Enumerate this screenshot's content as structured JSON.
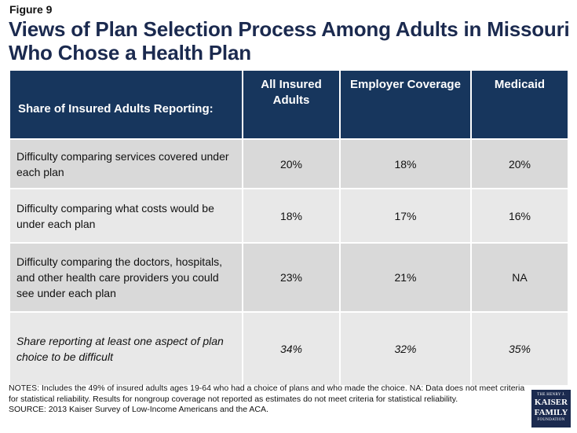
{
  "figure_label": "Figure 9",
  "chart_data": {
    "type": "table",
    "title": "Views of Plan Selection Process Among Adults in Missouri Who Chose a Health Plan",
    "row_header": "Share of Insured Adults Reporting:",
    "columns": [
      "All Insured Adults",
      "Employer Coverage",
      "Medicaid"
    ],
    "rows": [
      {
        "label": "Difficulty comparing services covered under each plan",
        "values": [
          "20%",
          "18%",
          "20%"
        ]
      },
      {
        "label": "Difficulty comparing what costs would be under each plan",
        "values": [
          "18%",
          "17%",
          "16%"
        ]
      },
      {
        "label": "Difficulty comparing the doctors, hospitals, and other health care providers you could see under each plan",
        "values": [
          "23%",
          "21%",
          "NA"
        ]
      },
      {
        "label": "Share reporting at least one aspect of plan choice to be difficult",
        "values": [
          "34%",
          "32%",
          "35%"
        ]
      }
    ]
  },
  "notes": "NOTES: Includes the 49% of insured adults ages 19-64 who had a choice of plans and who made the choice. NA:  Data does not meet criteria for statistical reliability. Results for nongroup coverage not reported as estimates do not meet criteria for statistical reliability.",
  "source": "SOURCE: 2013 Kaiser Survey of Low-Income Americans and the ACA.",
  "logo": {
    "line1": "THE HENRY J.",
    "line2": "KAISER",
    "line3": "FAMILY",
    "line4": "FOUNDATION"
  },
  "colors": {
    "header_bg": "#17365d",
    "title": "#1b2a4f",
    "row_dark": "#d9d9d9",
    "row_light": "#e8e8e8"
  }
}
